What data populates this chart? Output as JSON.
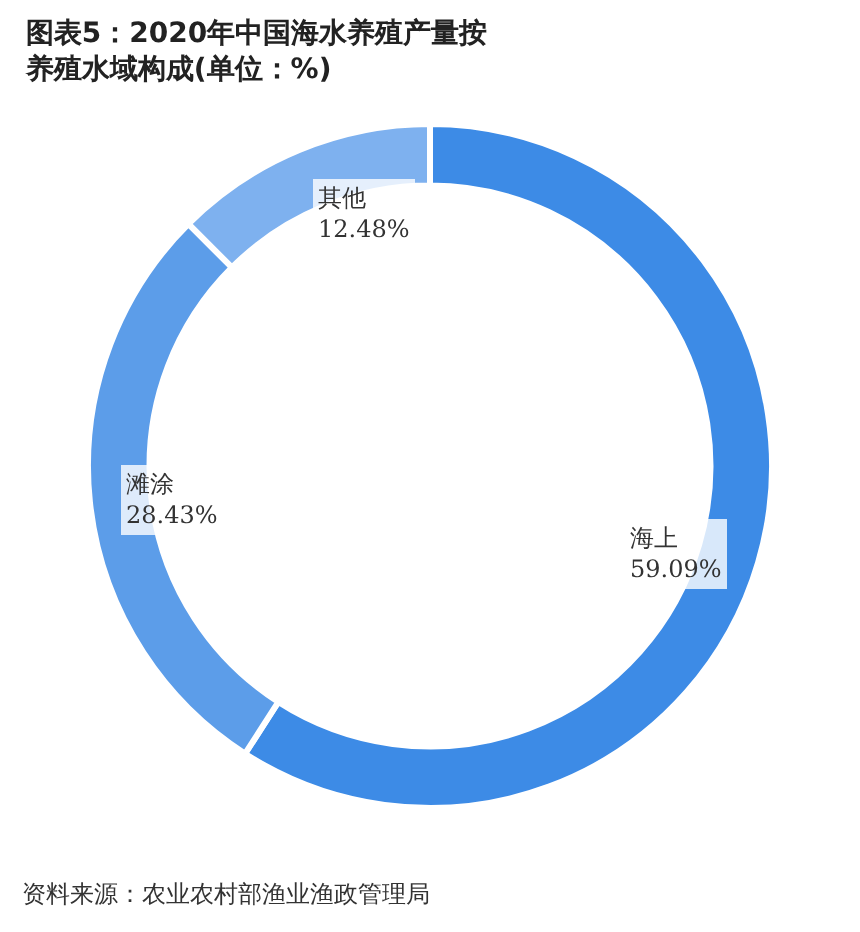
{
  "chart_data": {
    "type": "donut",
    "title": "图表5：2020年中国海水养殖产量按养殖水域构成(单位：%)",
    "categories": [
      "海上",
      "滩涂",
      "其他"
    ],
    "values": [
      59.09,
      28.43,
      12.48
    ],
    "value_labels": [
      "59.09%",
      "28.43%",
      "12.48%"
    ],
    "colors": [
      "#3d8be6",
      "#5c9de9",
      "#7eb1ef"
    ],
    "legend": false,
    "annotations": [
      "资料来源：农业农村部渔业渔政管理局"
    ]
  }
}
